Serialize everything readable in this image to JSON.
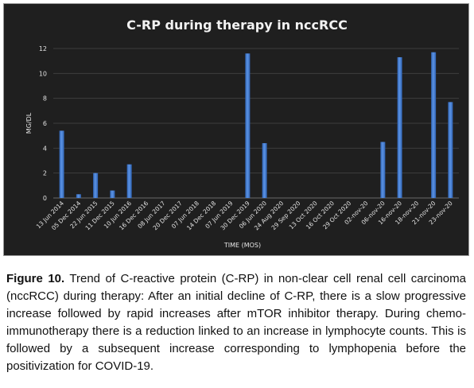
{
  "chart_data": {
    "type": "bar",
    "title": "C-RP during therapy in nccRCC",
    "xlabel": "TIME (MOS)",
    "ylabel": "MG/DL",
    "ylim": [
      0,
      12
    ],
    "yticks": [
      0,
      2,
      4,
      6,
      8,
      10,
      12
    ],
    "grid": true,
    "categories": [
      "13 Jun 2014",
      "05 Dec 2014",
      "22 Jun 2015",
      "11 Dec 2015",
      "10 Jun 2016",
      "16 Dec 2016",
      "08 Jun 2017",
      "20 Dec 2017",
      "07 Jun 2018",
      "14 Dec 2018",
      "07 Jun 2019",
      "30 Dec 2019",
      "06 Jun 2020",
      "24 Aug 2020",
      "29 Sep 2020",
      "13 Oct 2020",
      "16 Oct 2020",
      "29 Oct 2020",
      "02-nov-20",
      "06-nov-20",
      "16-nov-20",
      "18-nov-20",
      "21-nov-20",
      "23-nov-20"
    ],
    "values": [
      5.4,
      0.3,
      2.0,
      0.6,
      2.7,
      0,
      0,
      0,
      0,
      0,
      0,
      11.6,
      4.4,
      0,
      0,
      0,
      0,
      0,
      0,
      4.5,
      11.3,
      0,
      11.7,
      7.7
    ],
    "bar_color": "#4a86d8"
  },
  "caption": {
    "label": "Figure 10.",
    "text": " Trend of C-reactive protein (C-RP) in non-clear cell renal cell carcinoma (nccRCC) during therapy: After an initial decline of C-RP, there is a slow progressive increase followed by rapid increases after mTOR inhibitor therapy. During chemo-immunotherapy there is a reduction linked to an increase in lymphocyte counts. This is followed by a subsequent increase corresponding to lymphopenia before the positivization for COVID-19."
  }
}
